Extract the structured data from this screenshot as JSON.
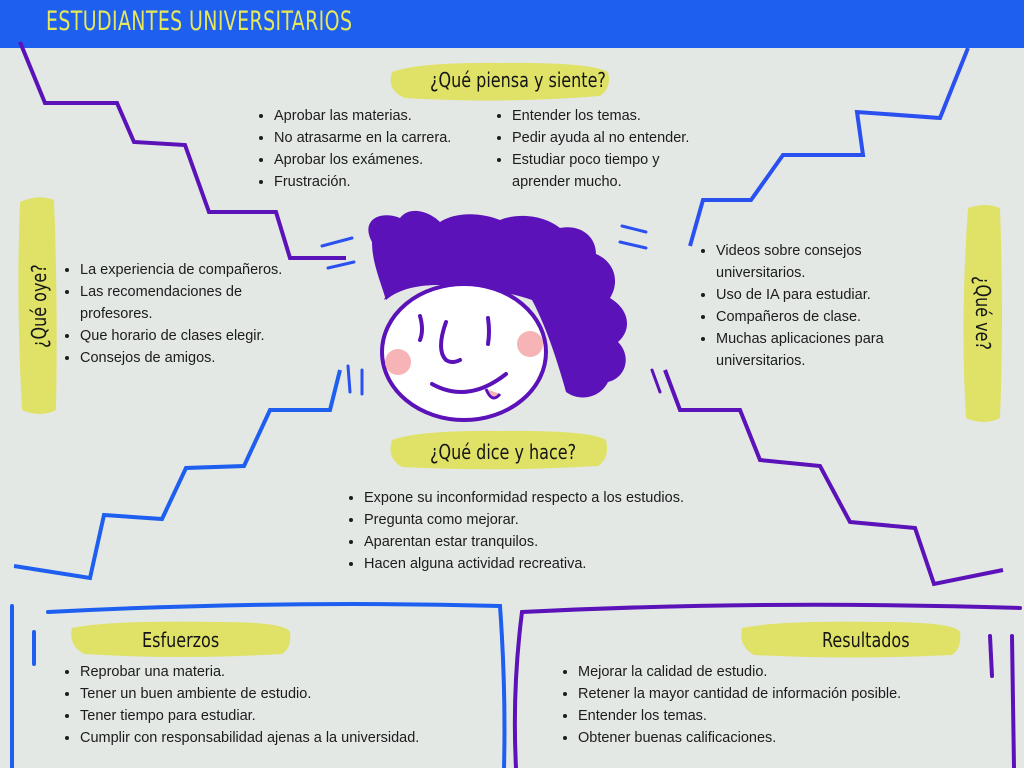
{
  "header": {
    "title": "ESTUDIANTES UNIVERSITARIOS"
  },
  "sections": {
    "piensa": {
      "title": "¿Qué piensa y siente?",
      "left": [
        "Aprobar las materias.",
        "No atrasarme en la carrera.",
        "Aprobar los exámenes.",
        "Frustración."
      ],
      "right": [
        "Entender los temas.",
        "Pedir ayuda al no entender.",
        "Estudiar poco tiempo y aprender mucho."
      ]
    },
    "oye": {
      "title": "¿Qué oye?",
      "items": [
        "La experiencia de compañeros.",
        "Las recomendaciones de profesores.",
        "Que horario de clases elegir.",
        "Consejos de amigos."
      ]
    },
    "ve": {
      "title": "¿Qué ve?",
      "items": [
        "Videos sobre consejos universitarios.",
        "Uso de IA para estudiar.",
        "Compañeros de clase.",
        "Muchas aplicaciones para universitarios."
      ]
    },
    "dice": {
      "title": "¿Qué dice y hace?",
      "items": [
        "Expone su inconformidad respecto a los estudios.",
        "Pregunta como mejorar.",
        "Aparentan estar tranquilos.",
        "Hacen alguna actividad recreativa."
      ]
    },
    "esfuerzos": {
      "title": "Esfuerzos",
      "items": [
        "Reprobar una materia.",
        "Tener un buen ambiente de estudio.",
        "Tener tiempo para estudiar.",
        "Cumplir con responsabilidad ajenas a la universidad."
      ]
    },
    "resultados": {
      "title": "Resultados",
      "items": [
        "Mejorar la calidad de estudio.",
        "Retener la mayor cantidad de información posible.",
        "Entender los temas.",
        "Obtener buenas calificaciones."
      ]
    }
  },
  "colors": {
    "header_bg": "#1e5ff0",
    "accent_yellow": "#dfe267",
    "purple": "#5b12b8",
    "blue": "#1e5ff0",
    "background": "#e3e8e5"
  }
}
